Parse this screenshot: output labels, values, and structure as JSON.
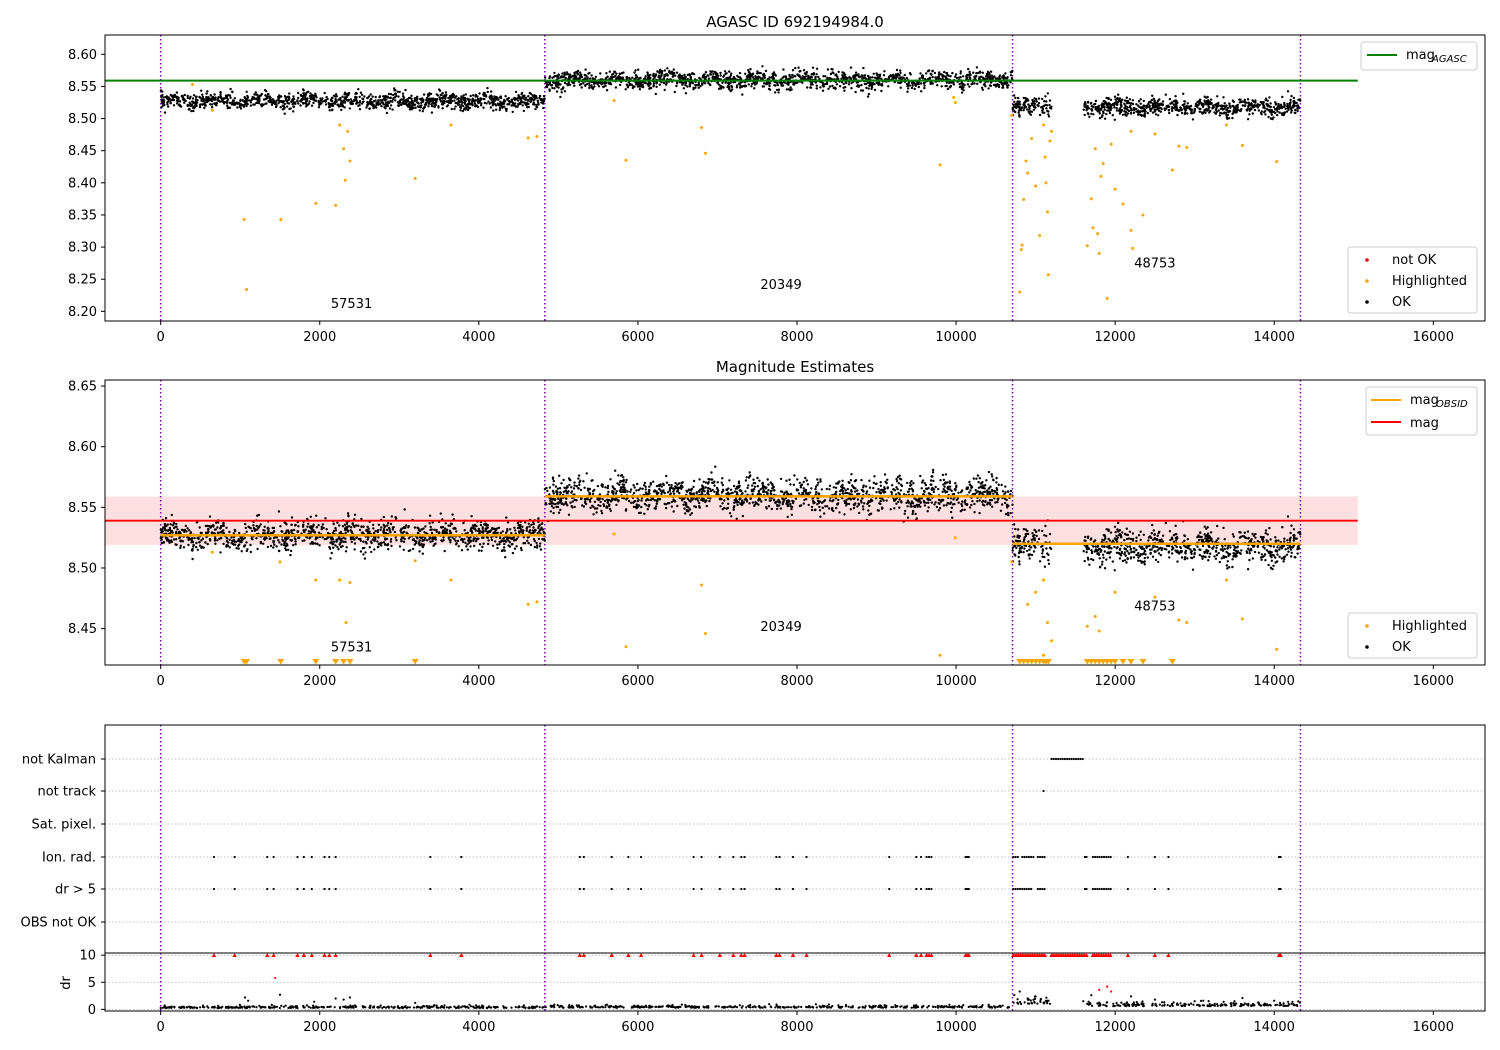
{
  "chart_data": [
    {
      "type": "scatter",
      "title": "AGASC ID 692194984.0",
      "xlim": [
        -700,
        16650
      ],
      "ylim": [
        8.185,
        8.63
      ],
      "xticks": [
        0,
        2000,
        4000,
        6000,
        8000,
        10000,
        12000,
        14000,
        16000
      ],
      "yticks": [
        8.2,
        8.25,
        8.3,
        8.35,
        8.4,
        8.45,
        8.5,
        8.55,
        8.6
      ],
      "obs_boundaries": [
        0,
        4830,
        10710,
        14330
      ],
      "obs_segments": [
        {
          "obsid": "57531",
          "x_start": 0,
          "x_end": 4830,
          "mean": 8.527,
          "spread": 0.008,
          "gap": null
        },
        {
          "obsid": "20349",
          "x_start": 4830,
          "x_end": 10710,
          "mean": 8.56,
          "spread": 0.009,
          "gap": null
        },
        {
          "obsid": "48753",
          "x_start": 10710,
          "x_end": 14330,
          "mean": 8.518,
          "spread": 0.009,
          "gap": [
            11200,
            11600
          ]
        }
      ],
      "obsid_labels": [
        {
          "text": "57531",
          "x": 2400,
          "y": 8.205
        },
        {
          "text": "20349",
          "x": 7800,
          "y": 8.235
        },
        {
          "text": "48753",
          "x": 12500,
          "y": 8.268
        }
      ],
      "reference_lines": [
        {
          "name": "mag_AGASC",
          "value": 8.559,
          "x_end": 15050,
          "color": "#008000"
        }
      ],
      "highlighted_points": [
        [
          1050,
          8.343
        ],
        [
          1080,
          8.234
        ],
        [
          1510,
          8.343
        ],
        [
          1950,
          8.368
        ],
        [
          2200,
          8.365
        ],
        [
          2250,
          8.49
        ],
        [
          2300,
          8.453
        ],
        [
          2320,
          8.404
        ],
        [
          2380,
          8.434
        ],
        [
          2350,
          8.48
        ],
        [
          3200,
          8.407
        ],
        [
          3650,
          8.49
        ],
        [
          4620,
          8.47
        ],
        [
          4730,
          8.472
        ],
        [
          650,
          8.513
        ],
        [
          400,
          8.553
        ],
        [
          5850,
          8.435
        ],
        [
          5700,
          8.528
        ],
        [
          6800,
          8.486
        ],
        [
          6850,
          8.446
        ],
        [
          9800,
          8.428
        ],
        [
          9990,
          8.525
        ],
        [
          9970,
          8.533
        ],
        [
          10700,
          8.505
        ],
        [
          10800,
          8.23
        ],
        [
          10820,
          8.296
        ],
        [
          10830,
          8.303
        ],
        [
          10850,
          8.374
        ],
        [
          10900,
          8.415
        ],
        [
          10880,
          8.434
        ],
        [
          10950,
          8.469
        ],
        [
          11000,
          8.395
        ],
        [
          11050,
          8.318
        ],
        [
          11100,
          8.49
        ],
        [
          11120,
          8.44
        ],
        [
          11150,
          8.355
        ],
        [
          11130,
          8.4
        ],
        [
          11160,
          8.257
        ],
        [
          11180,
          8.465
        ],
        [
          11200,
          8.48
        ],
        [
          11650,
          8.302
        ],
        [
          11700,
          8.375
        ],
        [
          11720,
          8.33
        ],
        [
          11750,
          8.453
        ],
        [
          11780,
          8.321
        ],
        [
          11800,
          8.29
        ],
        [
          11820,
          8.41
        ],
        [
          11850,
          8.43
        ],
        [
          11900,
          8.22
        ],
        [
          11950,
          8.46
        ],
        [
          12000,
          8.39
        ],
        [
          12100,
          8.367
        ],
        [
          12200,
          8.326
        ],
        [
          12220,
          8.298
        ],
        [
          12350,
          8.35
        ],
        [
          12500,
          8.476
        ],
        [
          12720,
          8.42
        ],
        [
          12800,
          8.457
        ],
        [
          12900,
          8.455
        ],
        [
          13600,
          8.458
        ],
        [
          14030,
          8.433
        ],
        [
          13400,
          8.49
        ],
        [
          12200,
          8.48
        ]
      ],
      "not_ok_points": [],
      "legends": [
        {
          "position": "top-right",
          "entries": [
            {
              "label_base": "mag",
              "label_sub": "AGASC",
              "color": "#008000",
              "kind": "line"
            }
          ]
        },
        {
          "position": "bottom-right",
          "entries": [
            {
              "label": "not OK",
              "color": "#ff0000",
              "kind": "marker"
            },
            {
              "label": "Highlighted",
              "color": "#ffa500",
              "kind": "marker"
            },
            {
              "label": "OK",
              "color": "#000000",
              "kind": "marker"
            }
          ]
        }
      ]
    },
    {
      "type": "scatter",
      "title": "Magnitude Estimates",
      "xlim": [
        -700,
        16650
      ],
      "ylim": [
        8.42,
        8.655
      ],
      "xticks": [
        0,
        2000,
        4000,
        6000,
        8000,
        10000,
        12000,
        14000,
        16000
      ],
      "yticks": [
        8.45,
        8.5,
        8.55,
        8.6,
        8.65
      ],
      "obs_boundaries": [
        0,
        4830,
        10710,
        14330
      ],
      "obsid_labels": [
        {
          "text": "57531",
          "x": 2400,
          "y": 8.431
        },
        {
          "text": "20349",
          "x": 7800,
          "y": 8.448
        },
        {
          "text": "48753",
          "x": 12500,
          "y": 8.465
        }
      ],
      "mag_obsid": [
        {
          "x_start": 0,
          "x_end": 4830,
          "value": 8.527
        },
        {
          "x_start": 4830,
          "x_end": 10710,
          "value": 8.559
        },
        {
          "x_start": 10710,
          "x_end": 14330,
          "value": 8.52
        }
      ],
      "mag": {
        "value": 8.539,
        "x_end": 15050,
        "band": [
          8.519,
          8.559
        ]
      },
      "highlighted_points": [
        [
          2250,
          8.49
        ],
        [
          2380,
          8.488
        ],
        [
          1950,
          8.49
        ],
        [
          2330,
          8.455
        ],
        [
          3650,
          8.49
        ],
        [
          4620,
          8.47
        ],
        [
          4730,
          8.472
        ],
        [
          650,
          8.513
        ],
        [
          1500,
          8.505
        ],
        [
          3200,
          8.506
        ],
        [
          5850,
          8.435
        ],
        [
          5700,
          8.528
        ],
        [
          6800,
          8.486
        ],
        [
          6850,
          8.446
        ],
        [
          9800,
          8.428
        ],
        [
          9990,
          8.525
        ],
        [
          10700,
          8.505
        ],
        [
          10900,
          8.47
        ],
        [
          11000,
          8.48
        ],
        [
          11100,
          8.49
        ],
        [
          11150,
          8.455
        ],
        [
          11200,
          8.44
        ],
        [
          11650,
          8.452
        ],
        [
          11750,
          8.46
        ],
        [
          12000,
          8.48
        ],
        [
          12500,
          8.476
        ],
        [
          12800,
          8.457
        ],
        [
          12900,
          8.455
        ],
        [
          13400,
          8.49
        ],
        [
          13600,
          8.458
        ],
        [
          14030,
          8.433
        ],
        [
          11800,
          8.448
        ],
        [
          11100,
          8.428
        ]
      ],
      "below_range_points": [
        1050,
        1080,
        1510,
        1950,
        2200,
        2300,
        2380,
        3200,
        10800,
        10850,
        10900,
        10950,
        11000,
        11050,
        11100,
        11130,
        11160,
        11650,
        11700,
        11750,
        11800,
        11850,
        11900,
        11950,
        12000,
        12100,
        12200,
        12350,
        12720
      ],
      "legends": [
        {
          "position": "top-right",
          "entries": [
            {
              "label_base": "mag",
              "label_sub": "OBSID",
              "color": "#ffa500",
              "kind": "line"
            },
            {
              "label": "mag",
              "color": "#ff0000",
              "kind": "line"
            }
          ]
        },
        {
          "position": "bottom-right",
          "entries": [
            {
              "label": "Highlighted",
              "color": "#ffa500",
              "kind": "marker"
            },
            {
              "label": "OK",
              "color": "#000000",
              "kind": "marker"
            }
          ]
        }
      ]
    },
    {
      "type": "scatter",
      "title": "",
      "xlim": [
        -700,
        16650
      ],
      "xticks": [
        0,
        2000,
        4000,
        6000,
        8000,
        10000,
        12000,
        14000,
        16000
      ],
      "obs_boundaries": [
        0,
        4830,
        10710,
        14330
      ],
      "flag_rows": [
        "not Kalman",
        "not track",
        "Sat. pixel.",
        "Ion. rad.",
        "dr > 5",
        "OBS not OK"
      ],
      "flags": {
        "not Kalman": {
          "ranges": [
            [
              11200,
              11600
            ]
          ],
          "points": []
        },
        "not track": {
          "ranges": [],
          "points": [
            11100
          ]
        },
        "Sat. pixel.": {
          "ranges": [],
          "points": []
        },
        "Ion. rad.": {
          "ranges": [
            [
              10720,
              11120
            ],
            [
              11720,
              11960
            ]
          ],
          "points": [
            670,
            930,
            1340,
            1420,
            1720,
            1800,
            1900,
            2060,
            2120,
            2200,
            3390,
            3780,
            5270,
            5320,
            5670,
            5880,
            6040,
            6700,
            6800,
            7030,
            7200,
            7300,
            7340,
            7740,
            7780,
            7950,
            8120,
            9160,
            9500,
            9560,
            9630,
            9660,
            9690,
            10120,
            10140,
            10160,
            11620,
            11640,
            12160,
            12500,
            12670,
            14060,
            14080
          ]
        },
        "dr > 5": {
          "ranges": [
            [
              10720,
              11120
            ],
            [
              11720,
              11960
            ]
          ],
          "points": [
            670,
            930,
            1340,
            1420,
            1720,
            1800,
            1900,
            2060,
            2120,
            2200,
            3390,
            3780,
            5270,
            5320,
            5670,
            5880,
            6040,
            6700,
            6800,
            7030,
            7200,
            7300,
            7340,
            7740,
            7780,
            7950,
            8120,
            9160,
            9500,
            9560,
            9630,
            9660,
            9690,
            10120,
            10140,
            10160,
            11620,
            11640,
            12160,
            12500,
            12670,
            14060,
            14080
          ]
        },
        "OBS not OK": {
          "ranges": [],
          "points": []
        }
      }
    },
    {
      "type": "scatter",
      "title": "",
      "ylabel": "dr",
      "xlim": [
        -700,
        16650
      ],
      "ylim": [
        -0.3,
        10.4
      ],
      "yticks": [
        0,
        5,
        10
      ],
      "obs_boundaries": [
        0,
        4830,
        10710,
        14330
      ],
      "baseline": [
        {
          "x_start": 0,
          "x_end": 4830,
          "level": 0.25,
          "spread": 0.35
        },
        {
          "x_start": 4830,
          "x_end": 10710,
          "level": 0.3,
          "spread": 0.35
        },
        {
          "x_start": 10710,
          "x_end": 11200,
          "level": 1.0,
          "spread": 0.9
        },
        {
          "x_start": 11600,
          "x_end": 14330,
          "level": 0.6,
          "spread": 0.6
        }
      ],
      "scatter_points": [
        [
          1060,
          2.2
        ],
        [
          1100,
          1.6
        ],
        [
          1500,
          2.7
        ],
        [
          1440,
          5.8
        ],
        [
          1930,
          1.4
        ],
        [
          2200,
          2.0
        ],
        [
          2300,
          1.8
        ],
        [
          2380,
          2.2
        ],
        [
          3200,
          1.2
        ],
        [
          10800,
          3.3
        ],
        [
          10900,
          2.0
        ],
        [
          11000,
          2.4
        ],
        [
          11700,
          2.6
        ],
        [
          11800,
          3.6
        ],
        [
          11900,
          4.2
        ],
        [
          11950,
          3.3
        ],
        [
          12200,
          2.4
        ],
        [
          12500,
          1.8
        ],
        [
          13000,
          1.5
        ],
        [
          13500,
          1.5
        ],
        [
          13600,
          2.1
        ],
        [
          14000,
          1.6
        ]
      ],
      "clipped_at": 10,
      "clipped_points": [
        670,
        930,
        1340,
        1420,
        1720,
        1800,
        1900,
        2060,
        2120,
        2200,
        3390,
        3780,
        5270,
        5320,
        5670,
        5880,
        6040,
        6700,
        6800,
        7030,
        7200,
        7300,
        7340,
        7740,
        7780,
        7950,
        8120,
        9160,
        9500,
        9560,
        9630,
        9660,
        9690,
        10120,
        10140,
        10160,
        12160,
        12500,
        12670,
        14060,
        14080
      ],
      "clipped_ranges": [
        [
          10720,
          11120
        ],
        [
          11200,
          11650
        ],
        [
          11720,
          11960
        ]
      ]
    }
  ]
}
